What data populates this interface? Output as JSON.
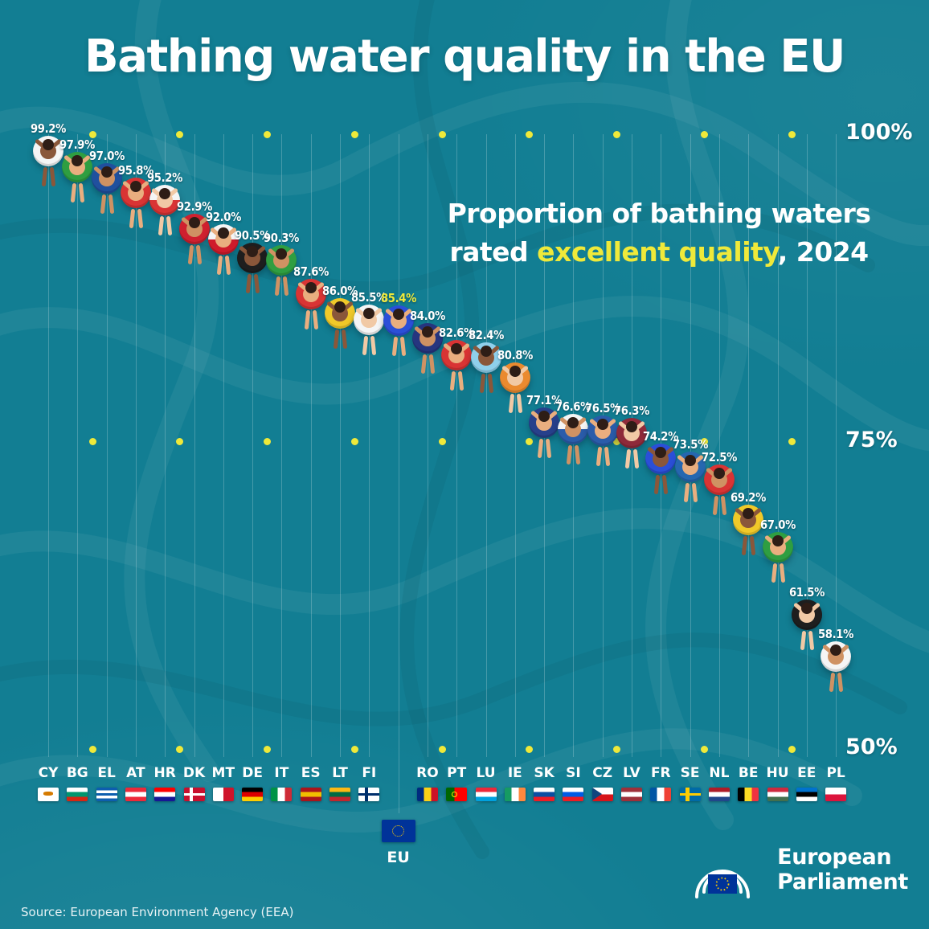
{
  "title": "Bathing water quality in the EU",
  "subtitle": {
    "line1": "Proportion of bathing waters",
    "line2_pre": "rated ",
    "line2_highlight": "excellent quality",
    "line2_post": ", 2024"
  },
  "source": "Source: European Environment Agency (EEA)",
  "logo": {
    "line1": "European",
    "line2": "Parliament"
  },
  "colors": {
    "background": "#127e93",
    "accent_yellow": "#efe93a",
    "text_white": "#ffffff",
    "eu_flag_blue": "#003399",
    "eu_flag_star": "#ffcc00"
  },
  "axis": {
    "ticks": [
      {
        "label": "100%",
        "value": 100
      },
      {
        "label": "75%",
        "value": 75
      },
      {
        "label": "50%",
        "value": 50
      }
    ],
    "ymin": 50,
    "ymax": 100
  },
  "chart_data": {
    "type": "scatter",
    "title": "Bathing water quality in the EU",
    "subtitle": "Proportion of bathing waters rated excellent quality, 2024",
    "unit": "%",
    "ylim": [
      50,
      100
    ],
    "yticks": [
      100,
      75,
      50
    ],
    "grid": "dotted-yellow-rows",
    "legend": "none",
    "categories": [
      "CY",
      "BG",
      "EL",
      "AT",
      "HR",
      "DK",
      "MT",
      "DE",
      "IT",
      "ES",
      "LT",
      "FI",
      "EU",
      "RO",
      "PT",
      "LU",
      "IE",
      "SK",
      "SI",
      "CZ",
      "LV",
      "FR",
      "SE",
      "NL",
      "BE",
      "HU",
      "EE",
      "PL"
    ],
    "values": [
      99.2,
      97.9,
      97.0,
      95.8,
      95.2,
      92.9,
      92.0,
      90.5,
      90.3,
      87.6,
      86.0,
      85.5,
      85.4,
      84.0,
      82.6,
      82.4,
      80.8,
      77.1,
      76.6,
      76.5,
      76.3,
      74.2,
      73.5,
      72.5,
      69.2,
      67.0,
      61.5,
      58.1
    ],
    "points": [
      {
        "code": "CY",
        "value": 99.2,
        "label": "99.2%",
        "ring": "#f5f5f5",
        "skin": "#8a573a",
        "flag": {
          "type": "cy"
        }
      },
      {
        "code": "BG",
        "value": 97.9,
        "label": "97.9%",
        "ring": "#2f9e41",
        "skin": "#e9ae7f",
        "flag": {
          "type": "h",
          "colors": [
            "#ffffff",
            "#00966e",
            "#d62612"
          ]
        }
      },
      {
        "code": "EL",
        "value": 97.0,
        "label": "97.0%",
        "ring": "#20509e",
        "skin": "#cf9263",
        "flag": {
          "type": "h",
          "colors": [
            "#0d5eaf",
            "#ffffff",
            "#0d5eaf",
            "#ffffff",
            "#0d5eaf"
          ]
        }
      },
      {
        "code": "AT",
        "value": 95.8,
        "label": "95.8%",
        "ring": "#d93434",
        "skin": "#e9ae7f",
        "flag": {
          "type": "h",
          "colors": [
            "#ed2939",
            "#ffffff",
            "#ed2939"
          ]
        }
      },
      {
        "code": "HR",
        "value": 95.2,
        "label": "95.2%",
        "ring": "#f5f5f5",
        "ring2": "#d93434",
        "skin": "#f1c9a5",
        "flag": {
          "type": "h",
          "colors": [
            "#ff0000",
            "#ffffff",
            "#171796"
          ]
        }
      },
      {
        "code": "DK",
        "value": 92.9,
        "label": "92.9%",
        "ring": "#d0202f",
        "skin": "#cf9263",
        "flag": {
          "type": "nordic",
          "bg": "#c8102e",
          "cross": "#ffffff"
        }
      },
      {
        "code": "MT",
        "value": 92.0,
        "label": "92.0%",
        "ring": "#f5f5f5",
        "ring2": "#cf1b2b",
        "skin": "#e9ae7f",
        "flag": {
          "type": "v",
          "colors": [
            "#ffffff",
            "#cf142b"
          ]
        }
      },
      {
        "code": "DE",
        "value": 90.5,
        "label": "90.5%",
        "ring": "#1e1e1e",
        "skin": "#8a573a",
        "flag": {
          "type": "h",
          "colors": [
            "#000000",
            "#dd0000",
            "#ffce00"
          ]
        }
      },
      {
        "code": "IT",
        "value": 90.3,
        "label": "90.3%",
        "ring": "#2f9e41",
        "skin": "#cf9263",
        "flag": {
          "type": "v",
          "colors": [
            "#009246",
            "#ffffff",
            "#ce2b37"
          ]
        }
      },
      {
        "code": "ES",
        "value": 87.6,
        "label": "87.6%",
        "ring": "#d93434",
        "skin": "#e9ae7f",
        "flag": {
          "type": "h",
          "colors": [
            "#aa151b",
            "#f1bf00",
            "#aa151b"
          ]
        }
      },
      {
        "code": "LT",
        "value": 86.0,
        "label": "86.0%",
        "ring": "#f0c929",
        "skin": "#8a573a",
        "flag": {
          "type": "h",
          "colors": [
            "#fdb913",
            "#006a44",
            "#c1272d"
          ]
        }
      },
      {
        "code": "FI",
        "value": 85.5,
        "label": "85.5%",
        "ring": "#f5f5f5",
        "skin": "#f1c9a5",
        "flag": {
          "type": "nordic",
          "bg": "#ffffff",
          "cross": "#002f6c"
        }
      },
      {
        "code": "EU",
        "value": 85.4,
        "label": "85.4%",
        "ring": "#2b4fd8",
        "skin": "#e9ae7f",
        "highlight": true,
        "flag": {
          "type": "eu",
          "bg": "#003399",
          "star": "#ffcc00"
        }
      },
      {
        "code": "RO",
        "value": 84.0,
        "label": "84.0%",
        "ring": "#26357f",
        "skin": "#cf9263",
        "flag": {
          "type": "v",
          "colors": [
            "#002b7f",
            "#fcd116",
            "#ce1126"
          ]
        }
      },
      {
        "code": "PT",
        "value": 82.6,
        "label": "82.6%",
        "ring": "#d93434",
        "skin": "#e9ae7f",
        "flag": {
          "type": "pt",
          "colors": [
            "#006600",
            "#ff0000"
          ],
          "dot": "#ffe500"
        }
      },
      {
        "code": "LU",
        "value": 82.4,
        "label": "82.4%",
        "ring": "#8fd0ec",
        "skin": "#8a573a",
        "flag": {
          "type": "h",
          "colors": [
            "#ed2939",
            "#ffffff",
            "#00a1de"
          ]
        }
      },
      {
        "code": "IE",
        "value": 80.8,
        "label": "80.8%",
        "ring": "#ea8a2f",
        "skin": "#f1c9a5",
        "flag": {
          "type": "v",
          "colors": [
            "#169b62",
            "#ffffff",
            "#ff883e"
          ]
        }
      },
      {
        "code": "SK",
        "value": 77.1,
        "label": "77.1%",
        "ring": "#27408b",
        "skin": "#e9ae7f",
        "flag": {
          "type": "h",
          "colors": [
            "#ffffff",
            "#0b4ea2",
            "#ee1c25"
          ]
        }
      },
      {
        "code": "SI",
        "value": 76.6,
        "label": "76.6%",
        "ring": "#f5f5f5",
        "ring2": "#2a5caa",
        "skin": "#cf9263",
        "flag": {
          "type": "h",
          "colors": [
            "#ffffff",
            "#005ce5",
            "#ed1c24"
          ]
        }
      },
      {
        "code": "CZ",
        "value": 76.5,
        "label": "76.5%",
        "ring": "#2a5caa",
        "skin": "#e9ae7f",
        "flag": {
          "type": "cz",
          "colors": [
            "#ffffff",
            "#d7141a"
          ],
          "triangle": "#11457e"
        }
      },
      {
        "code": "LV",
        "value": 76.3,
        "label": "76.3%",
        "ring": "#8e2a3a",
        "skin": "#f1c9a5",
        "flag": {
          "type": "h",
          "colors": [
            "#9e3039",
            "#ffffff",
            "#9e3039"
          ]
        }
      },
      {
        "code": "FR",
        "value": 74.2,
        "label": "74.2%",
        "ring": "#2b4fd8",
        "skin": "#8a573a",
        "flag": {
          "type": "v",
          "colors": [
            "#0055a4",
            "#ffffff",
            "#ef4135"
          ]
        }
      },
      {
        "code": "SE",
        "value": 73.5,
        "label": "73.5%",
        "ring": "#2667b0",
        "skin": "#e9ae7f",
        "flag": {
          "type": "nordic",
          "bg": "#006aa7",
          "cross": "#fecc02"
        }
      },
      {
        "code": "NL",
        "value": 72.5,
        "label": "72.5%",
        "ring": "#d93434",
        "skin": "#cf9263",
        "flag": {
          "type": "h",
          "colors": [
            "#ae1c28",
            "#ffffff",
            "#21468b"
          ]
        }
      },
      {
        "code": "BE",
        "value": 69.2,
        "label": "69.2%",
        "ring": "#f0c929",
        "skin": "#8a573a",
        "flag": {
          "type": "v",
          "colors": [
            "#000000",
            "#fdda24",
            "#ef3340"
          ]
        }
      },
      {
        "code": "HU",
        "value": 67.0,
        "label": "67.0%",
        "ring": "#2f9e41",
        "skin": "#e9ae7f",
        "flag": {
          "type": "h",
          "colors": [
            "#cd2a3e",
            "#ffffff",
            "#436f4d"
          ]
        }
      },
      {
        "code": "EE",
        "value": 61.5,
        "label": "61.5%",
        "ring": "#1e1e1e",
        "skin": "#f1c9a5",
        "flag": {
          "type": "h",
          "colors": [
            "#0072ce",
            "#000000",
            "#ffffff"
          ]
        }
      },
      {
        "code": "PL",
        "value": 58.1,
        "label": "58.1%",
        "ring": "#f5f5f5",
        "skin": "#cf9263",
        "flag": {
          "type": "h",
          "colors": [
            "#ffffff",
            "#dc143c"
          ]
        }
      }
    ]
  }
}
